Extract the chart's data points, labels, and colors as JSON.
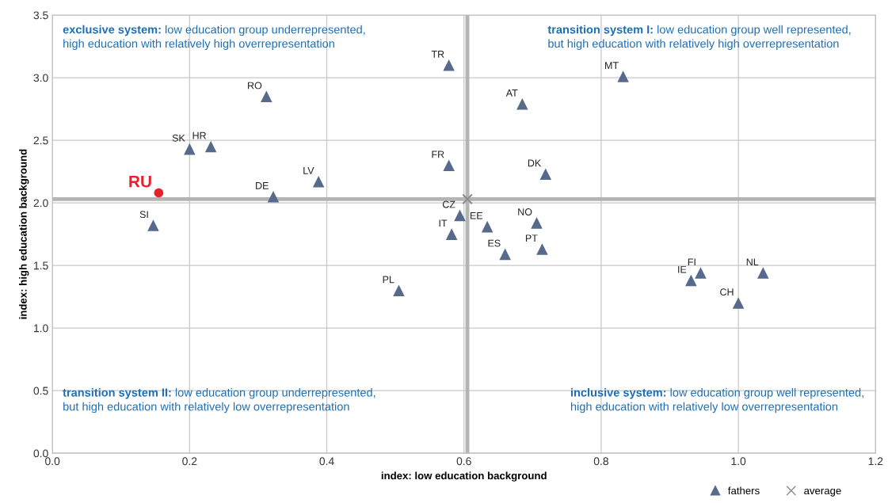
{
  "chart_data": {
    "type": "scatter",
    "xlabel": "index: low education background",
    "ylabel": "index: high education background",
    "xlim": [
      0,
      1.2
    ],
    "ylim": [
      0,
      3.5
    ],
    "xticks": [
      {
        "value": 0,
        "label": "0.0"
      },
      {
        "value": 0.2,
        "label": "0.2"
      },
      {
        "value": 0.4,
        "label": "0.4"
      },
      {
        "value": 0.6,
        "label": "0.6"
      },
      {
        "value": 0.8,
        "label": "0.8"
      },
      {
        "value": 1.0,
        "label": "1.0"
      },
      {
        "value": 1.2,
        "label": "1.2"
      }
    ],
    "yticks": [
      {
        "value": 0,
        "label": "0.0"
      },
      {
        "value": 0.5,
        "label": "0.5"
      },
      {
        "value": 1.0,
        "label": "1.0"
      },
      {
        "value": 1.5,
        "label": "1.5"
      },
      {
        "value": 2.0,
        "label": "2.0"
      },
      {
        "value": 2.5,
        "label": "2.5"
      },
      {
        "value": 3.0,
        "label": "3.0"
      },
      {
        "value": 3.5,
        "label": "3.5"
      }
    ],
    "grid": true,
    "legend": "bottom right",
    "series": [
      {
        "name": "fathers",
        "color": "#566b8c",
        "marker": "triangle",
        "x": [
          0.578,
          0.312,
          0.2,
          0.231,
          0.322,
          0.388,
          0.578,
          0.147,
          0.594,
          0.582,
          0.634,
          0.505,
          0.685,
          0.832,
          0.719,
          0.706,
          0.714,
          0.66,
          0.945,
          0.931,
          1.036,
          1.0
        ],
        "values": [
          3.1,
          2.85,
          2.43,
          2.45,
          2.05,
          2.17,
          2.3,
          1.82,
          1.9,
          1.75,
          1.81,
          1.3,
          2.79,
          3.01,
          2.23,
          1.84,
          1.63,
          1.59,
          1.44,
          1.38,
          1.44,
          1.2
        ]
      },
      {
        "name": "average",
        "color": "#8c8c8c",
        "marker": "cross",
        "x": [
          0.605
        ],
        "values": [
          2.03
        ]
      },
      {
        "color": "#e8202a",
        "marker": "circle",
        "x": [
          0.155
        ],
        "values": [
          2.08
        ]
      }
    ],
    "ref_lines": [
      {
        "axis": "x",
        "value": 0.605,
        "color": "#b4b4b4"
      },
      {
        "axis": "y",
        "value": 2.03,
        "color": "#b4b4b4"
      }
    ],
    "annotations": [
      "exclusive system: low education group underrepresented,\nhigh education with relatively high overrepresentation",
      "transition system I: low education group well represented,\nbut high education with relatively high overrepresentation",
      "transition system II: low education group underrepresented,\nbut high education with relatively low overrepresentation",
      "inclusive system: low education group well represented,\nhigh education with relatively low overrepresentation",
      {
        "text": "TR",
        "x": 0.578,
        "y": 3.1
      },
      {
        "text": "RO",
        "x": 0.312,
        "y": 2.85
      },
      {
        "text": "SK",
        "x": 0.2,
        "y": 2.43
      },
      {
        "text": "HR",
        "x": 0.231,
        "y": 2.45
      },
      {
        "text": "DE",
        "x": 0.322,
        "y": 2.05
      },
      {
        "text": "LV",
        "x": 0.388,
        "y": 2.17
      },
      {
        "text": "FR",
        "x": 0.578,
        "y": 2.3
      },
      {
        "text": "SI",
        "x": 0.147,
        "y": 1.82
      },
      {
        "text": "CZ",
        "x": 0.594,
        "y": 1.9
      },
      {
        "text": "IT",
        "x": 0.582,
        "y": 1.75
      },
      {
        "text": "EE",
        "x": 0.634,
        "y": 1.81
      },
      {
        "text": "PL",
        "x": 0.505,
        "y": 1.3
      },
      {
        "text": "AT",
        "x": 0.685,
        "y": 2.79
      },
      {
        "text": "MT",
        "x": 0.832,
        "y": 3.01
      },
      {
        "text": "DK",
        "x": 0.719,
        "y": 2.23
      },
      {
        "text": "NO",
        "x": 0.706,
        "y": 1.84
      },
      {
        "text": "PT",
        "x": 0.714,
        "y": 1.63
      },
      {
        "text": "ES",
        "x": 0.66,
        "y": 1.59
      },
      {
        "text": "FI",
        "x": 0.945,
        "y": 1.44
      },
      {
        "text": "IE",
        "x": 0.931,
        "y": 1.38
      },
      {
        "text": "NL",
        "x": 1.036,
        "y": 1.44
      },
      {
        "text": "CH",
        "x": 1.0,
        "y": 1.2
      },
      {
        "text": "RU",
        "x": 0.155,
        "y": 2.08
      }
    ]
  }
}
